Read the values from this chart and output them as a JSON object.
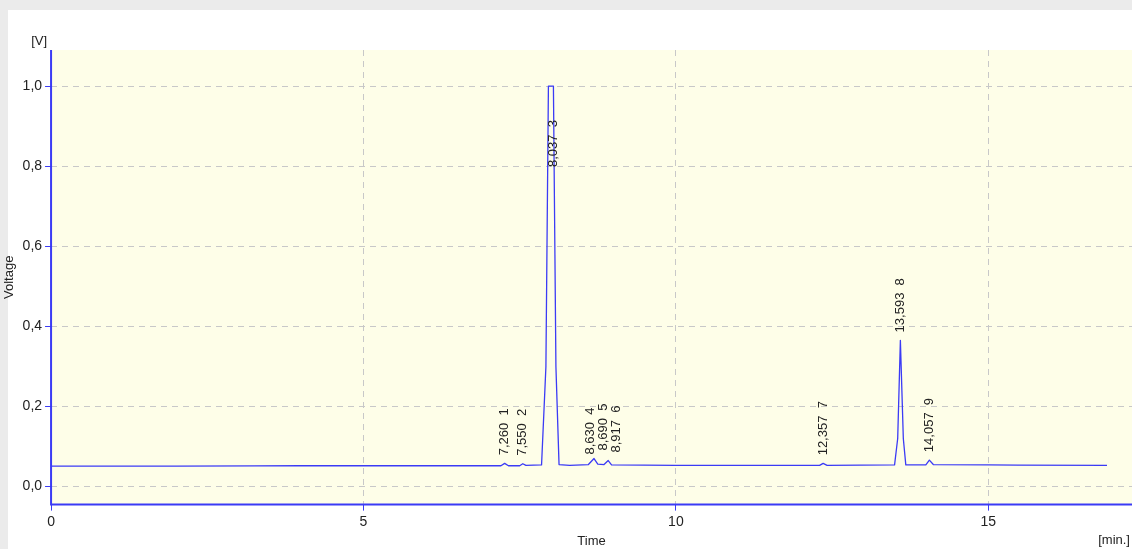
{
  "chart_data": {
    "type": "line",
    "xlabel": "Time",
    "ylabel": "Voltage",
    "color": "#3b3bf5",
    "x": [
      0,
      2,
      4,
      6,
      7.2,
      7.26,
      7.32,
      7.5,
      7.55,
      7.6,
      7.85,
      7.92,
      7.96,
      8.04,
      8.08,
      8.13,
      8.3,
      8.6,
      8.63,
      8.69,
      8.75,
      8.85,
      8.917,
      8.97,
      10,
      12.3,
      12.357,
      12.42,
      13.5,
      13.55,
      13.593,
      13.64,
      13.68,
      14.0,
      14.057,
      14.12,
      15,
      16.9
    ],
    "values": [
      0.051,
      0.051,
      0.052,
      0.052,
      0.052,
      0.058,
      0.052,
      0.052,
      0.057,
      0.053,
      0.054,
      0.3,
      1.0,
      1.0,
      0.3,
      0.055,
      0.053,
      0.055,
      0.06,
      0.07,
      0.056,
      0.055,
      0.065,
      0.054,
      0.053,
      0.053,
      0.058,
      0.053,
      0.054,
      0.12,
      0.365,
      0.12,
      0.054,
      0.054,
      0.066,
      0.055,
      0.054,
      0.053
    ],
    "xlim": [
      0,
      17.3
    ],
    "ylim": [
      -0.045,
      1.09
    ],
    "xticks": [
      0,
      5,
      10,
      15
    ],
    "yticks": [
      {
        "value": 0,
        "label": "0,0"
      },
      {
        "value": 0.2,
        "label": "0,2"
      },
      {
        "value": 0.4,
        "label": "0,4"
      },
      {
        "value": 0.6,
        "label": "0,6"
      },
      {
        "value": 0.8,
        "label": "0,8"
      },
      {
        "value": 1.0,
        "label": "1,0"
      }
    ],
    "grid": true,
    "line_style": "solid",
    "marker": "none",
    "legend": false,
    "annotations": [
      "[V]",
      "[min.]",
      {
        "text": "7,260  1",
        "x": 7.26,
        "y": 0.058
      },
      {
        "text": "7,550  2",
        "x": 7.55,
        "y": 0.057
      },
      {
        "text": "8,037  3",
        "x": 8.037,
        "y": 1.0
      },
      {
        "text": "8,630  4",
        "x": 8.63,
        "y": 0.06
      },
      {
        "text": "8,690  5",
        "x": 8.69,
        "y": 0.07
      },
      {
        "text": "8,917  6",
        "x": 8.917,
        "y": 0.065
      },
      {
        "text": "12,357  7",
        "x": 12.357,
        "y": 0.058
      },
      {
        "text": "13,593  8",
        "x": 13.593,
        "y": 0.365
      },
      {
        "text": "14,057  9",
        "x": 14.057,
        "y": 0.066
      }
    ]
  }
}
